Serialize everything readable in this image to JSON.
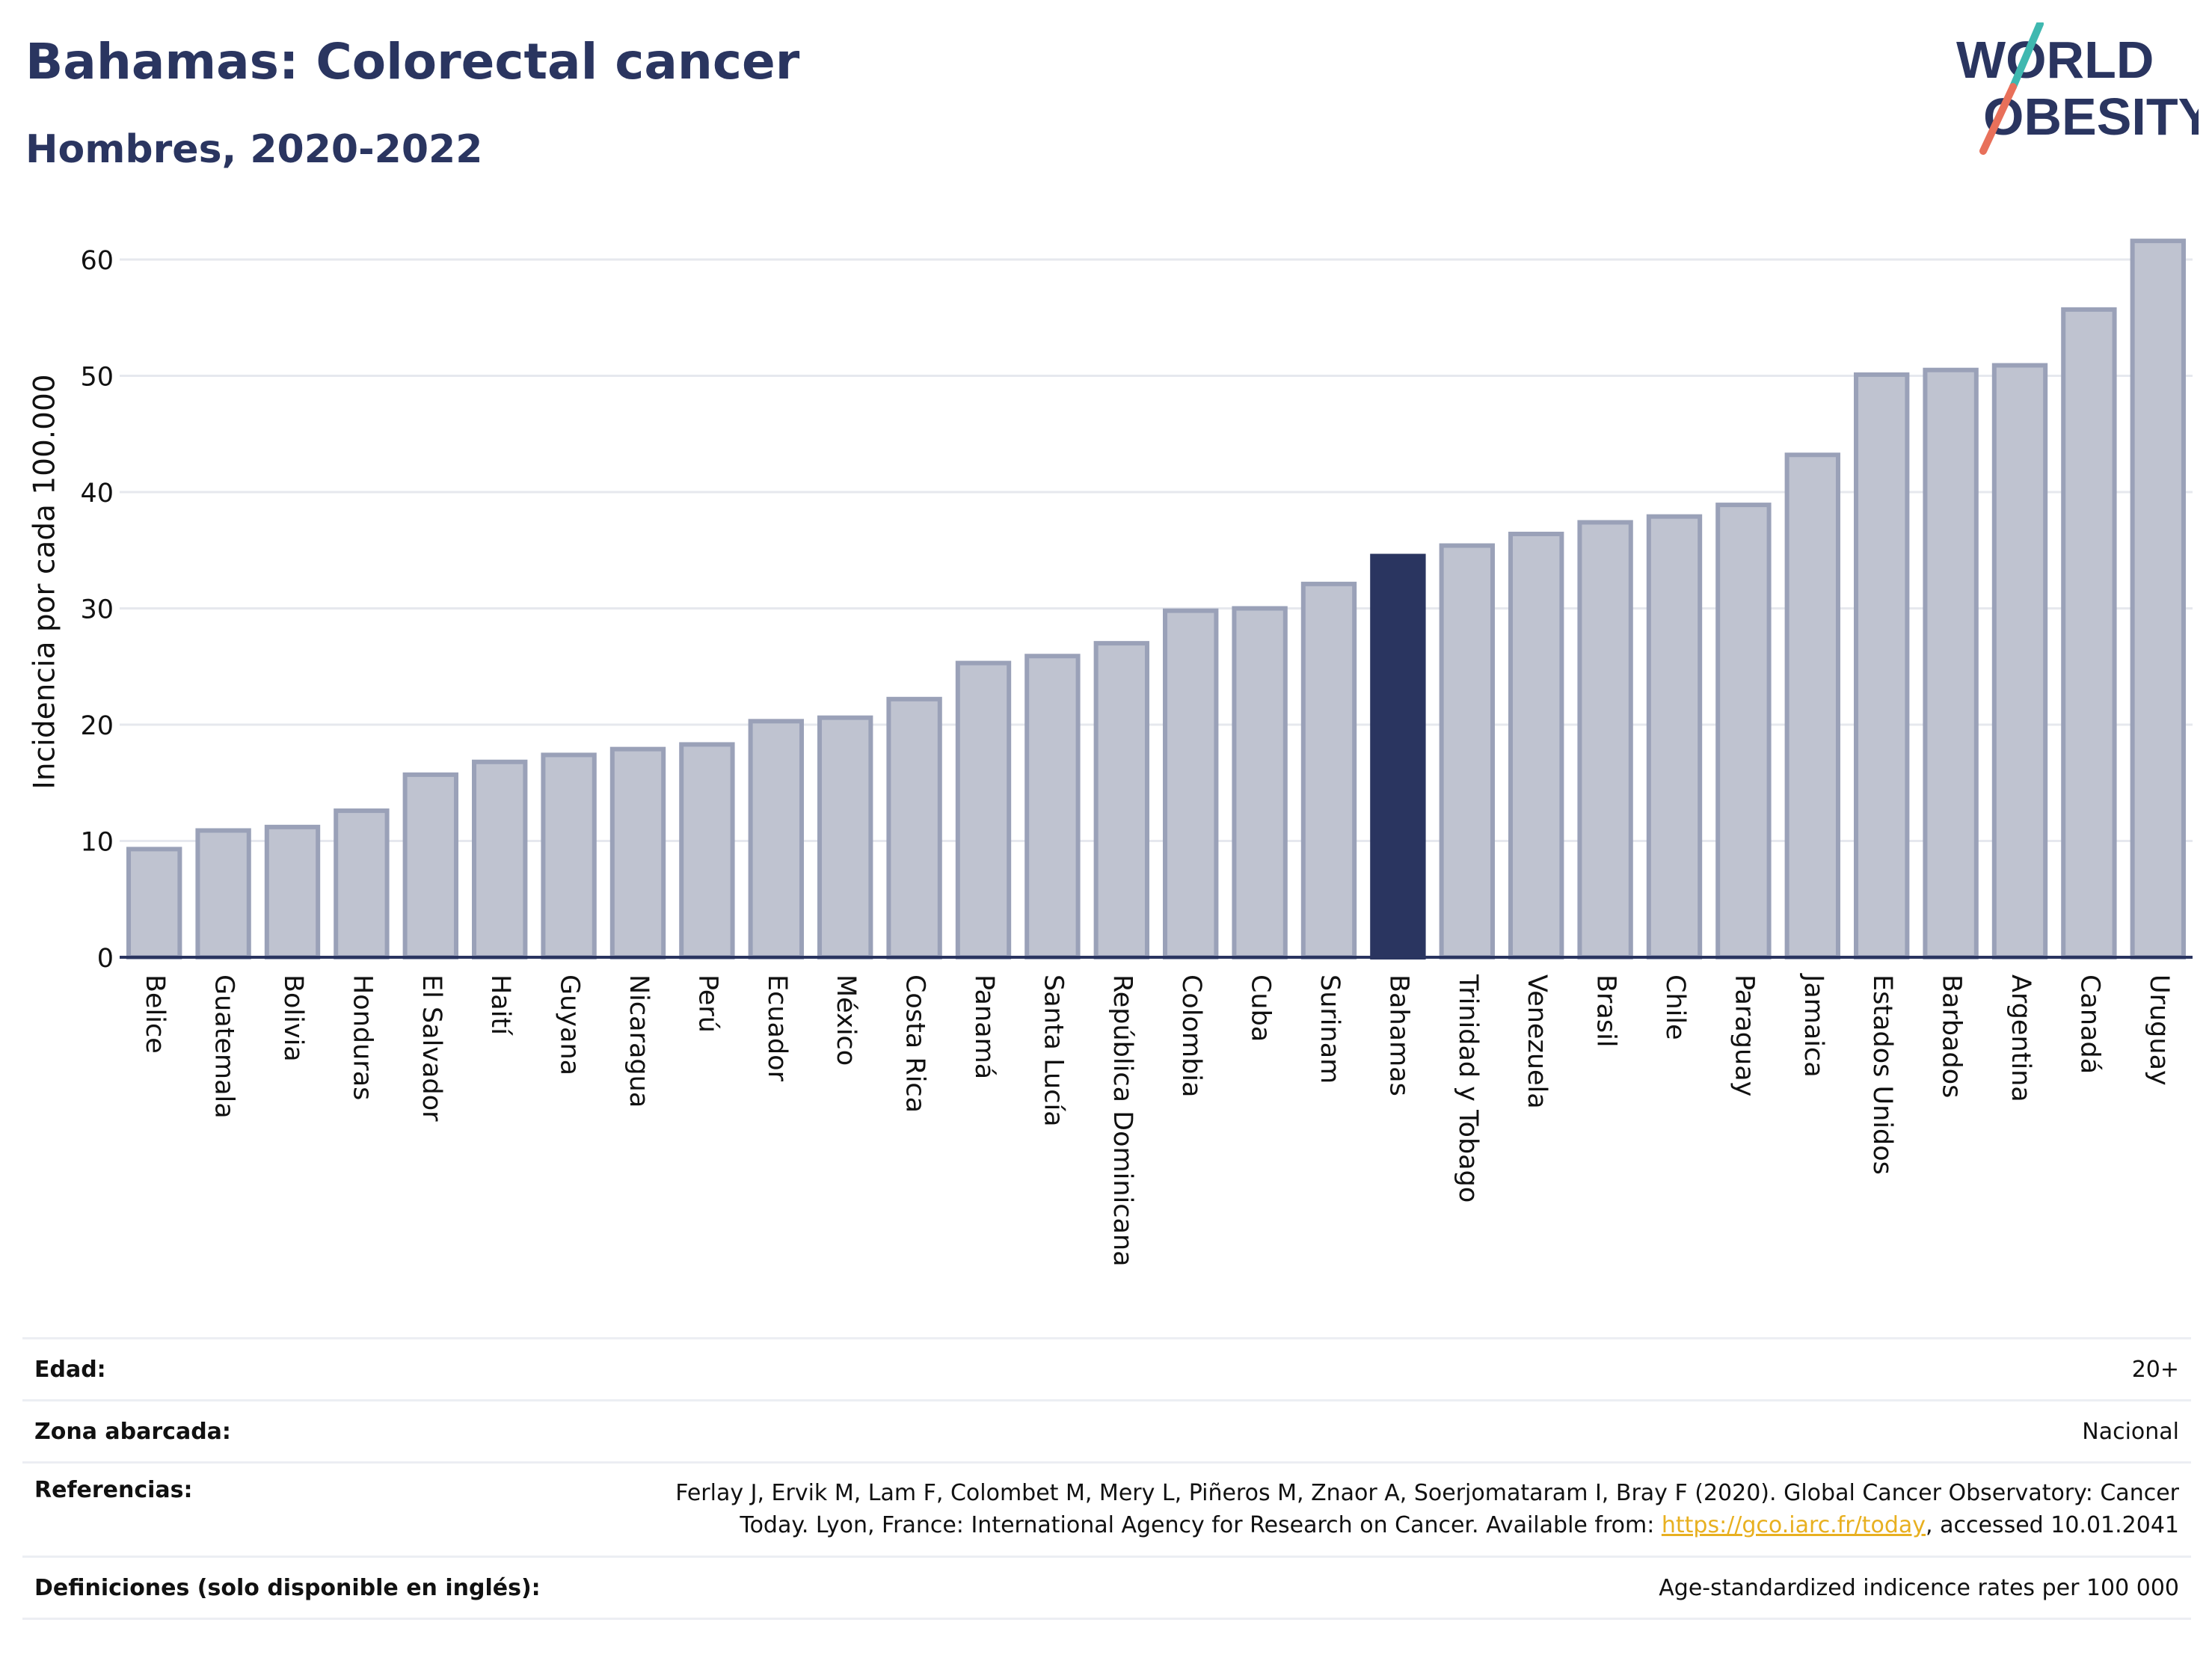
{
  "header": {
    "title": "Bahamas: Colorectal cancer",
    "subtitle": "Hombres, 2020-2022"
  },
  "logo": {
    "line1": "WORLD",
    "line2": "OBESITY",
    "colors": {
      "text": "#2a3560",
      "slash_top": "#3fb8b0",
      "slash_bottom": "#e8705a"
    }
  },
  "chart_data": {
    "type": "bar",
    "ylabel": "Incidencia por cada 100.000",
    "xlabel": "",
    "ylim": [
      0,
      65
    ],
    "yticks": [
      0,
      10,
      20,
      30,
      40,
      50,
      60
    ],
    "grid": true,
    "legend": "none",
    "highlight": "Bahamas",
    "colors": {
      "bar": "#bfc3d0",
      "bar_border": "#9aa1b8",
      "highlight": "#2a3560",
      "grid": "#e6e8ee",
      "axis": "#2a3560"
    },
    "categories": [
      "Belice",
      "Guatemala",
      "Bolivia",
      "Honduras",
      "El Salvador",
      "Haití",
      "Guyana",
      "Nicaragua",
      "Perú",
      "Ecuador",
      "México",
      "Costa Rica",
      "Panamá",
      "Santa Lucía",
      "República Dominicana",
      "Colombia",
      "Cuba",
      "Surinam",
      "Bahamas",
      "Trinidad y Tobago",
      "Venezuela",
      "Brasil",
      "Chile",
      "Paraguay",
      "Jamaica",
      "Estados Unidos",
      "Barbados",
      "Argentina",
      "Canadá",
      "Uruguay"
    ],
    "values": [
      9.3,
      10.9,
      11.2,
      12.6,
      15.7,
      16.8,
      17.4,
      17.9,
      18.3,
      20.3,
      20.6,
      22.2,
      25.3,
      25.9,
      27.0,
      29.8,
      30.0,
      32.1,
      34.5,
      35.4,
      36.4,
      37.4,
      37.9,
      38.9,
      43.2,
      50.1,
      50.5,
      50.9,
      55.7,
      61.6
    ]
  },
  "info": {
    "age_label": "Edad:",
    "age_value": "20+",
    "area_label": "Zona abarcada:",
    "area_value": "Nacional",
    "refs_label": "Referencias:",
    "refs_line1": "Ferlay J, Ervik M, Lam F, Colombet M, Mery L, Piñeros M, Znaor A, Soerjomataram I, Bray F (2020). Global Cancer Observatory: Cancer",
    "refs_line2_before": "Today. Lyon, France: International Agency for Research on Cancer. Available from: ",
    "refs_link": "https://gco.iarc.fr/today",
    "refs_line2_after": ", accessed 10.01.2041",
    "defs_label": "Definiciones (solo disponible en inglés):",
    "defs_value": "Age-standardized indicence rates per 100 000"
  }
}
